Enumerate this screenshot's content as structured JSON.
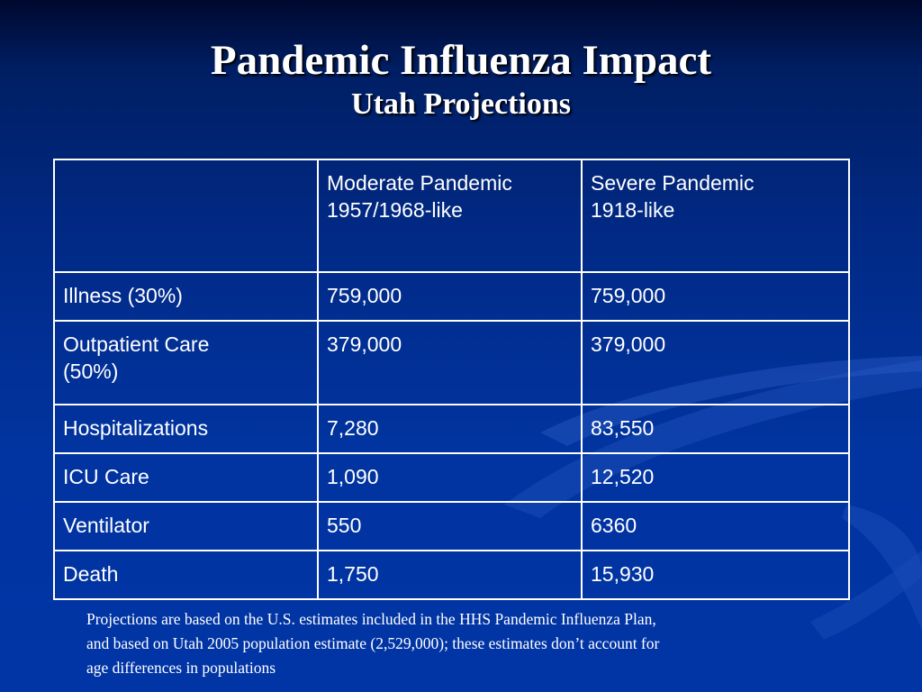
{
  "slide": {
    "title": "Pandemic Influenza Impact",
    "subtitle": "Utah Projections"
  },
  "table": {
    "header": {
      "corner": "",
      "col1": [
        "Moderate Pandemic",
        "1957/1968-like"
      ],
      "col2": [
        "Severe Pandemic",
        "1918-like"
      ]
    },
    "rows": [
      {
        "label": [
          "Illness (30%)"
        ],
        "moderate": "759,000",
        "severe": "759,000"
      },
      {
        "label": [
          "Outpatient Care",
          "(50%)"
        ],
        "moderate": "379,000",
        "severe": "379,000"
      },
      {
        "label": [
          "Hospitalizations"
        ],
        "moderate": "7,280",
        "severe": "83,550"
      },
      {
        "label": [
          "ICU Care"
        ],
        "moderate": "1,090",
        "severe": "12,520"
      },
      {
        "label": [
          "Ventilator"
        ],
        "moderate": "550",
        "severe": "6360"
      },
      {
        "label": [
          "Death"
        ],
        "moderate": "1,750",
        "severe": "15,930"
      }
    ]
  },
  "footnote": {
    "lines": [
      "Projections are based on the U.S. estimates included in the HHS Pandemic Influenza Plan,",
      "and based on Utah 2005 population estimate (2,529,000); these estimates don’t account for",
      "age differences in populations"
    ]
  },
  "colors": {
    "background_top": "#00082e",
    "background_main": "#0134a0",
    "text": "#ffffff",
    "swoosh": "#1b4db8"
  }
}
